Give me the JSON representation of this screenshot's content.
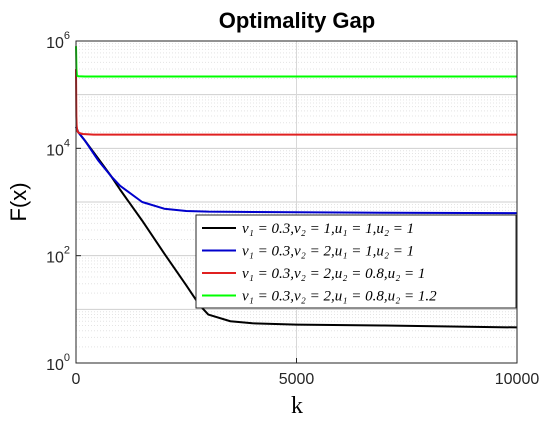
{
  "chart_data": {
    "type": "line",
    "title": "Optimality Gap",
    "xlabel": "k",
    "ylabel": "F(x)",
    "xlim": [
      0,
      10000
    ],
    "ylim": [
      1,
      1000000
    ],
    "yscale": "log",
    "grid": true,
    "legend_placement": "bottom-right",
    "x_ticks": [
      {
        "value": 0,
        "label": "0"
      },
      {
        "value": 5000,
        "label": "5000"
      },
      {
        "value": 10000,
        "label": "10000"
      }
    ],
    "y_ticks": [
      {
        "value": 1,
        "base": "10",
        "exp": "0"
      },
      {
        "value": 100,
        "base": "10",
        "exp": "2"
      },
      {
        "value": 10000,
        "base": "10",
        "exp": "4"
      },
      {
        "value": 1000000,
        "base": "10",
        "exp": "6"
      }
    ],
    "series": [
      {
        "name": "v₁ = 0.3,v₂ = 1,u₁ = 1,u₂ = 1",
        "color": "#000000",
        "points": [
          [
            0,
            25000
          ],
          [
            50,
            20000
          ],
          [
            200,
            14000
          ],
          [
            500,
            6500
          ],
          [
            800,
            3000
          ],
          [
            1000,
            1700
          ],
          [
            1500,
            450
          ],
          [
            2000,
            110
          ],
          [
            2500,
            28
          ],
          [
            2800,
            12
          ],
          [
            3000,
            8
          ],
          [
            3500,
            6
          ],
          [
            4000,
            5.5
          ],
          [
            5000,
            5.2
          ],
          [
            7000,
            5
          ],
          [
            10000,
            4.6
          ]
        ]
      },
      {
        "name": "v₁ = 0.3,v₂ = 2,u₁ = 1,u₂ = 1",
        "color": "#0000cc",
        "points": [
          [
            0,
            25000
          ],
          [
            50,
            20000
          ],
          [
            200,
            14000
          ],
          [
            500,
            6000
          ],
          [
            800,
            3000
          ],
          [
            1000,
            2000
          ],
          [
            1500,
            1000
          ],
          [
            2000,
            750
          ],
          [
            2500,
            680
          ],
          [
            3000,
            660
          ],
          [
            4000,
            650
          ],
          [
            7000,
            630
          ],
          [
            10000,
            620
          ]
        ]
      },
      {
        "name": "v₁ = 0.3,v₂ = 2,u₂ = 0.8,u₂ = 1",
        "color": "#e02020",
        "points": [
          [
            0,
            300000
          ],
          [
            8,
            40000
          ],
          [
            15,
            26000
          ],
          [
            30,
            21000
          ],
          [
            60,
            19500
          ],
          [
            150,
            18500
          ],
          [
            400,
            18000
          ],
          [
            10000,
            18000
          ]
        ]
      },
      {
        "name": "v₁ = 0.3,v₂ = 2,u₁ = 0.8,u₂ = 1.2",
        "color": "#00ff00",
        "points": [
          [
            0,
            800000
          ],
          [
            5,
            500000
          ],
          [
            10,
            300000
          ],
          [
            20,
            230000
          ],
          [
            50,
            220000
          ],
          [
            200,
            218000
          ],
          [
            10000,
            218000
          ]
        ]
      }
    ]
  }
}
